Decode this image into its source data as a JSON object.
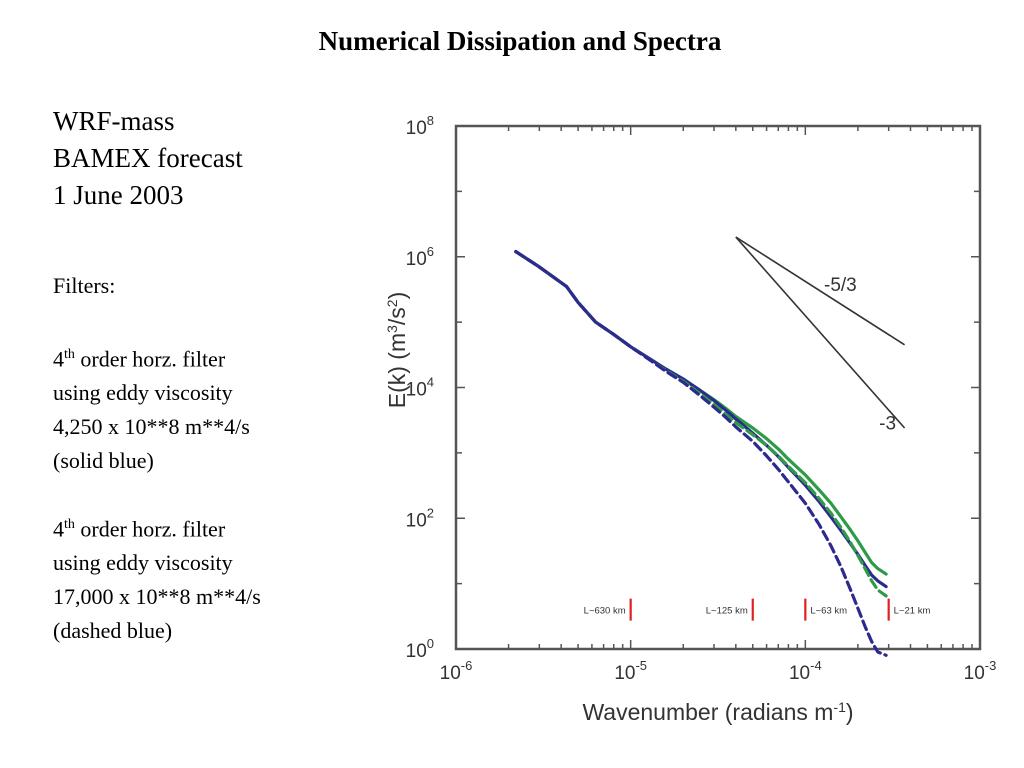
{
  "slide": {
    "title": "Numerical Dissipation and Spectra",
    "heading_lines": [
      "WRF-mass",
      "BAMEX forecast",
      "1 June 2003"
    ],
    "filters_label": "Filters:",
    "filter1": {
      "order_num": "4",
      "order_sup": "th",
      "order_rest": " order horz. filter",
      "line2": "using eddy viscosity",
      "line3": "4,250 x 10**8 m**4/s",
      "line4": "(solid blue)"
    },
    "filter2": {
      "order_num": "4",
      "order_sup": "th",
      "order_rest": " order horz. filter",
      "line2": "using eddy viscosity",
      "line3": "17,000 x 10**8 m**4/s",
      "line4": "(dashed blue)"
    }
  },
  "chart_data": {
    "type": "line",
    "x_scale": "log",
    "y_scale": "log",
    "xlim": [
      1e-06,
      0.001
    ],
    "ylim": [
      1,
      100000000.0
    ],
    "xlabel": "Wavenumber  (radians m",
    "xlabel_sup": "-1",
    "xlabel_close": ")",
    "ylabel_parts": [
      "E(k) (m",
      "3",
      "/s",
      "2",
      ")"
    ],
    "x_ticks": [
      {
        "value": 1e-06,
        "base": "10",
        "exp": "-6"
      },
      {
        "value": 1e-05,
        "base": "10",
        "exp": "-5"
      },
      {
        "value": 0.0001,
        "base": "10",
        "exp": "-4"
      },
      {
        "value": 0.001,
        "base": "10",
        "exp": "-3"
      }
    ],
    "y_ticks": [
      {
        "value": 1,
        "base": "10",
        "exp": "0"
      },
      {
        "value": 100,
        "base": "10",
        "exp": "2"
      },
      {
        "value": 10000,
        "base": "10",
        "exp": "4"
      },
      {
        "value": 1000000,
        "base": "10",
        "exp": "6"
      },
      {
        "value": 100000000,
        "base": "10",
        "exp": "8"
      }
    ],
    "grid": false,
    "series": [
      {
        "style": "solid",
        "color": "#2e9b47",
        "points": [
          [
            2.2e-06,
            1200000.0
          ],
          [
            3e-06,
            700000.0
          ],
          [
            4.3e-06,
            350000.0
          ],
          [
            5e-06,
            200000.0
          ],
          [
            6.3e-06,
            100000.0
          ],
          [
            8e-06,
            65000.0
          ],
          [
            1e-05,
            42000.0
          ],
          [
            1.3e-05,
            27000.0
          ],
          [
            1.6e-05,
            19000.0
          ],
          [
            2e-05,
            13500.0
          ],
          [
            2.5e-05,
            9000.0
          ],
          [
            3e-05,
            6500.0
          ],
          [
            3.5e-05,
            4800.0
          ],
          [
            4e-05,
            3600.0
          ],
          [
            5e-05,
            2400.0
          ],
          [
            6e-05,
            1650.0
          ],
          [
            7e-05,
            1150.0
          ],
          [
            8e-05,
            800
          ],
          [
            0.0001,
            460
          ],
          [
            0.00012,
            270
          ],
          [
            0.00014,
            170
          ],
          [
            0.00016,
            105
          ],
          [
            0.00018,
            68
          ],
          [
            0.0002,
            45
          ],
          [
            0.00022,
            30
          ],
          [
            0.00024,
            21
          ],
          [
            0.00026,
            17
          ],
          [
            0.00029,
            14
          ]
        ]
      },
      {
        "style": "solid",
        "color": "#2c2a8e",
        "points": [
          [
            2.2e-06,
            1200000.0
          ],
          [
            3e-06,
            700000.0
          ],
          [
            4.3e-06,
            350000.0
          ],
          [
            5e-06,
            200000.0
          ],
          [
            6.3e-06,
            100000.0
          ],
          [
            8e-06,
            65000.0
          ],
          [
            1e-05,
            42000.0
          ],
          [
            1.3e-05,
            27000.0
          ],
          [
            1.6e-05,
            19000.0
          ],
          [
            2e-05,
            13500.0
          ],
          [
            2.5e-05,
            9000.0
          ],
          [
            3e-05,
            6300.0
          ],
          [
            3.5e-05,
            4500.0
          ],
          [
            4e-05,
            3300.0
          ],
          [
            5e-05,
            2000.0
          ],
          [
            6e-05,
            1300.0
          ],
          [
            7e-05,
            880
          ],
          [
            8e-05,
            600
          ],
          [
            0.0001,
            320
          ],
          [
            0.00012,
            180
          ],
          [
            0.00014,
            105
          ],
          [
            0.00016,
            65
          ],
          [
            0.00018,
            42
          ],
          [
            0.0002,
            28
          ],
          [
            0.00022,
            19
          ],
          [
            0.00024,
            13.5
          ],
          [
            0.00026,
            11
          ],
          [
            0.00029,
            9
          ]
        ]
      },
      {
        "style": "dashed",
        "color": "#2e9b47",
        "points": [
          [
            2.2e-06,
            1200000.0
          ],
          [
            3e-06,
            700000.0
          ],
          [
            4.3e-06,
            350000.0
          ],
          [
            5e-06,
            200000.0
          ],
          [
            6.3e-06,
            100000.0
          ],
          [
            8e-06,
            65000.0
          ],
          [
            1e-05,
            42000.0
          ],
          [
            1.3e-05,
            26000.0
          ],
          [
            1.6e-05,
            18000.0
          ],
          [
            2e-05,
            12500.0
          ],
          [
            2.5e-05,
            8000.0
          ],
          [
            3e-05,
            5500.0
          ],
          [
            3.5e-05,
            3900.0
          ],
          [
            4e-05,
            2900.0
          ],
          [
            5e-05,
            1900.0
          ],
          [
            6e-05,
            1300.0
          ],
          [
            7e-05,
            900
          ],
          [
            8e-05,
            620
          ],
          [
            0.0001,
            350
          ],
          [
            0.00012,
            200
          ],
          [
            0.00014,
            120
          ],
          [
            0.00016,
            72
          ],
          [
            0.00018,
            44
          ],
          [
            0.0002,
            27
          ],
          [
            0.00022,
            17
          ],
          [
            0.00024,
            11
          ],
          [
            0.00026,
            8
          ],
          [
            0.00029,
            6.5
          ]
        ]
      },
      {
        "style": "dashed",
        "color": "#2c2a8e",
        "points": [
          [
            2.2e-06,
            1200000.0
          ],
          [
            3e-06,
            700000.0
          ],
          [
            4.3e-06,
            350000.0
          ],
          [
            5e-06,
            200000.0
          ],
          [
            6.3e-06,
            100000.0
          ],
          [
            8e-06,
            65000.0
          ],
          [
            1e-05,
            42000.0
          ],
          [
            1.3e-05,
            26000.0
          ],
          [
            1.6e-05,
            17500.0
          ],
          [
            2e-05,
            12000.0
          ],
          [
            2.5e-05,
            7500.0
          ],
          [
            3e-05,
            5000.0
          ],
          [
            3.5e-05,
            3500.0
          ],
          [
            4e-05,
            2500.0
          ],
          [
            5e-05,
            1500.0
          ],
          [
            6e-05,
            900
          ],
          [
            7e-05,
            560
          ],
          [
            8e-05,
            360
          ],
          [
            0.0001,
            170
          ],
          [
            0.00012,
            80
          ],
          [
            0.00014,
            38
          ],
          [
            0.00016,
            18
          ],
          [
            0.00018,
            8.5
          ],
          [
            0.0002,
            4.2
          ],
          [
            0.00022,
            2.2
          ],
          [
            0.00024,
            1.3
          ],
          [
            0.00026,
            0.9
          ],
          [
            0.00029,
            0.8
          ]
        ]
      }
    ],
    "reference_lines": [
      {
        "label": "-5/3",
        "slope": -1.6667,
        "start": [
          4e-05,
          2000000.0
        ],
        "end": [
          0.00037,
          45000.0
        ],
        "label_at": [
          5.8e-05,
          400000.0
        ]
      },
      {
        "label": "-3",
        "slope": -3,
        "start": [
          4e-05,
          2000000.0
        ],
        "end": [
          0.00037,
          2400.0
        ],
        "label_at": [
          0.00012,
          3000.0
        ]
      }
    ],
    "scale_markers": [
      {
        "label": "L~630 km",
        "x": 1e-05,
        "label_side": "left"
      },
      {
        "label": "L~125 km",
        "x": 5e-05,
        "label_side": "left"
      },
      {
        "label": "L~63 km",
        "x": 0.0001,
        "label_side": "right"
      },
      {
        "label": "L~21 km",
        "x": 0.0003,
        "label_side": "right"
      }
    ],
    "colors": {
      "green": "#2e9b47",
      "blue": "#2c2a8e",
      "marker": "#e02020",
      "reference": "#333333"
    }
  }
}
